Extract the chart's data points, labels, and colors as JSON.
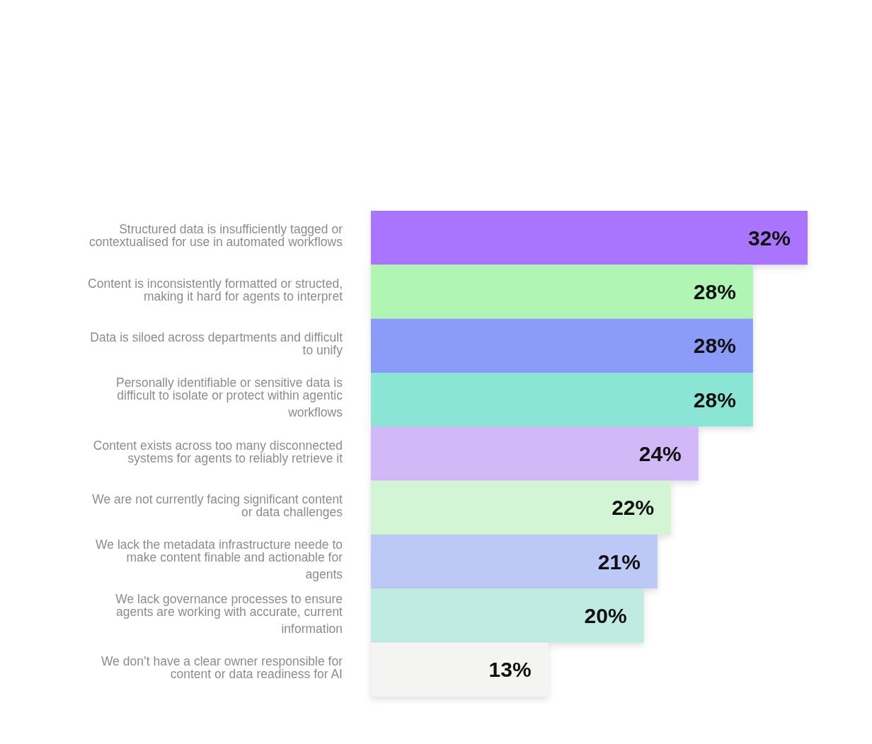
{
  "chart_data": {
    "type": "bar",
    "orientation": "horizontal",
    "value_labels": [
      "32%",
      "28%",
      "28%",
      "28%",
      "24%",
      "22%",
      "21%",
      "20%",
      "13%"
    ],
    "categories": [
      "Structured data is insufficiently tagged or contextualised for use in automated workflows",
      "Content is inconsistently formatted or structed, making it hard for agents to interpret",
      "Data is siloed across departments and difficult to unify",
      "Personally identifiable or sensitive data is difficult to isolate or protect within agentic workflows",
      "Content exists across too many disconnected systems for agents to reliably retrieve it",
      "We are not currently facing significant content or data challenges",
      "We lack the metadata infrastructure neede to make content finable and actionable for agents",
      "We lack governance processes to ensure agents are working with accurate, current information",
      "We don’t have a clear owner responsible for content or data readiness for AI"
    ],
    "values": [
      32,
      28,
      28,
      28,
      24,
      22,
      21,
      20,
      13
    ],
    "colors": [
      "#a974ff",
      "#b1f5b5",
      "#8a9cf8",
      "#8ae5d5",
      "#d1b8f7",
      "#d3f5d5",
      "#bcc8f5",
      "#bfebe2",
      "#f4f4f3"
    ]
  }
}
